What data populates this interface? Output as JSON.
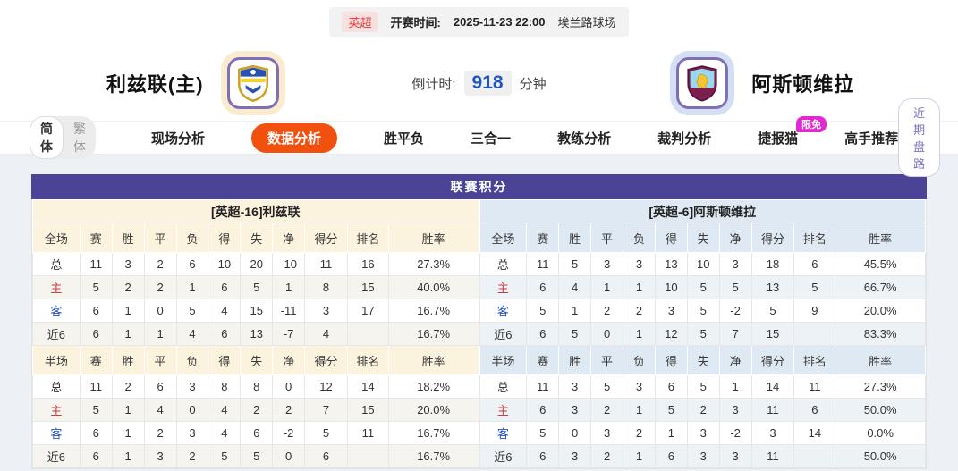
{
  "match_header": {
    "league": "英超",
    "kickoff_label": "开赛时间:",
    "kickoff_time": "2025-11-23 22:00",
    "venue": "埃兰路球场",
    "home_team": "利兹联(主)",
    "away_team": "阿斯顿维拉",
    "countdown_label": "倒计时:",
    "countdown_value": "918",
    "countdown_unit": "分钟"
  },
  "nav": {
    "lang_simplified": "简体",
    "lang_traditional": "繁体",
    "items": [
      {
        "label": "现场分析",
        "active": false
      },
      {
        "label": "数据分析",
        "active": true
      },
      {
        "label": "胜平负",
        "active": false
      },
      {
        "label": "三合一",
        "active": false
      },
      {
        "label": "教练分析",
        "active": false
      },
      {
        "label": "裁判分析",
        "active": false
      },
      {
        "label": "捷报猫",
        "active": false,
        "badge": "限免"
      },
      {
        "label": "高手推荐",
        "active": false
      }
    ],
    "right_button": "近期盘路"
  },
  "table": {
    "title": "联赛积分",
    "columns": [
      "赛",
      "胜",
      "平",
      "负",
      "得",
      "失",
      "净",
      "得分",
      "排名",
      "胜率"
    ],
    "sections": {
      "full": "全场",
      "half": "半场"
    },
    "home": {
      "header": "[英超-16]利兹联",
      "full_rows": [
        {
          "label": "总",
          "values": [
            "11",
            "3",
            "2",
            "6",
            "10",
            "20",
            "-10",
            "11",
            "16",
            "27.3%"
          ]
        },
        {
          "label": "主",
          "values": [
            "5",
            "2",
            "2",
            "1",
            "6",
            "5",
            "1",
            "8",
            "15",
            "40.0%"
          ]
        },
        {
          "label": "客",
          "values": [
            "6",
            "1",
            "0",
            "5",
            "4",
            "15",
            "-11",
            "3",
            "17",
            "16.7%"
          ]
        },
        {
          "label": "近6",
          "values": [
            "6",
            "1",
            "1",
            "4",
            "6",
            "13",
            "-7",
            "4",
            "",
            "16.7%"
          ]
        }
      ],
      "half_rows": [
        {
          "label": "总",
          "values": [
            "11",
            "2",
            "6",
            "3",
            "8",
            "8",
            "0",
            "12",
            "14",
            "18.2%"
          ]
        },
        {
          "label": "主",
          "values": [
            "5",
            "1",
            "4",
            "0",
            "4",
            "2",
            "2",
            "7",
            "15",
            "20.0%"
          ]
        },
        {
          "label": "客",
          "values": [
            "6",
            "1",
            "2",
            "3",
            "4",
            "6",
            "-2",
            "5",
            "11",
            "16.7%"
          ]
        },
        {
          "label": "近6",
          "values": [
            "6",
            "1",
            "3",
            "2",
            "5",
            "5",
            "0",
            "6",
            "",
            "16.7%"
          ]
        }
      ]
    },
    "away": {
      "header": "[英超-6]阿斯顿维拉",
      "full_rows": [
        {
          "label": "总",
          "values": [
            "11",
            "5",
            "3",
            "3",
            "13",
            "10",
            "3",
            "18",
            "6",
            "45.5%"
          ]
        },
        {
          "label": "主",
          "values": [
            "6",
            "4",
            "1",
            "1",
            "10",
            "5",
            "5",
            "13",
            "5",
            "66.7%"
          ]
        },
        {
          "label": "客",
          "values": [
            "5",
            "1",
            "2",
            "2",
            "3",
            "5",
            "-2",
            "5",
            "9",
            "20.0%"
          ]
        },
        {
          "label": "近6",
          "values": [
            "6",
            "5",
            "0",
            "1",
            "12",
            "5",
            "7",
            "15",
            "",
            "83.3%"
          ]
        }
      ],
      "half_rows": [
        {
          "label": "总",
          "values": [
            "11",
            "3",
            "5",
            "3",
            "6",
            "5",
            "1",
            "14",
            "11",
            "27.3%"
          ]
        },
        {
          "label": "主",
          "values": [
            "6",
            "3",
            "2",
            "1",
            "5",
            "2",
            "3",
            "11",
            "6",
            "50.0%"
          ]
        },
        {
          "label": "客",
          "values": [
            "5",
            "0",
            "3",
            "2",
            "1",
            "3",
            "-2",
            "3",
            "14",
            "0.0%"
          ]
        },
        {
          "label": "近6",
          "values": [
            "6",
            "3",
            "2",
            "1",
            "6",
            "3",
            "3",
            "11",
            "",
            "50.0%"
          ]
        }
      ]
    }
  },
  "colors": {
    "accent_orange": "#f1500e",
    "title_purple": "#4b4496",
    "home_label_red": "#d43a3a",
    "away_label_blue": "#2450c8",
    "badge_magenta": "#e22ad0",
    "countdown_blue": "#1d56c0",
    "home_header_bg": "#fcf3de",
    "away_header_bg": "#dfe9f3"
  }
}
